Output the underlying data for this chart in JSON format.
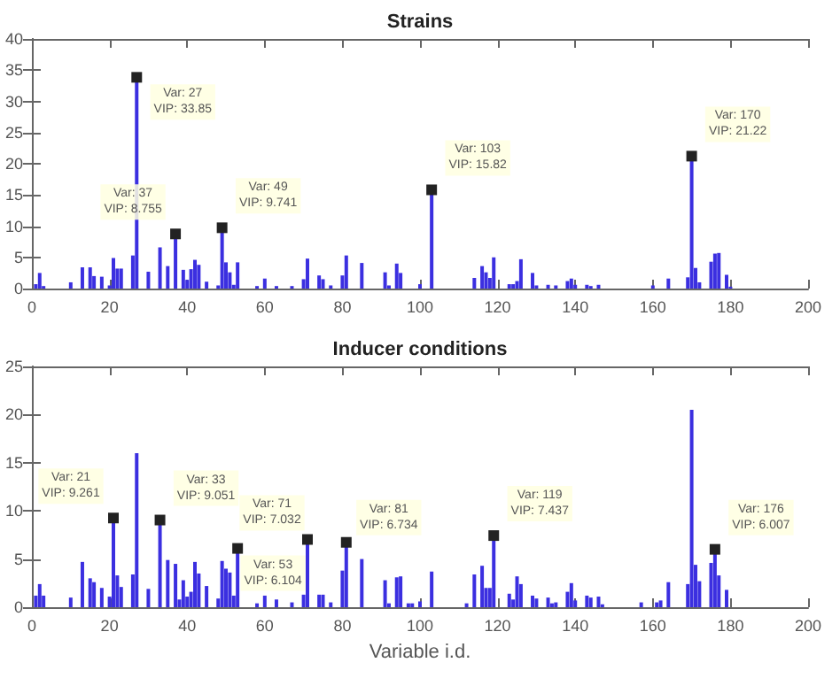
{
  "chart_data": [
    {
      "type": "bar",
      "title": "Strains",
      "color": "#3b2fe0",
      "xlim": [
        0,
        200
      ],
      "xticks": [
        0,
        20,
        40,
        60,
        80,
        100,
        120,
        140,
        160,
        180,
        200
      ],
      "ylim": [
        0,
        40
      ],
      "yticks": [
        0,
        5,
        10,
        15,
        20,
        25,
        30,
        35,
        40
      ],
      "grid": false,
      "x": [
        1,
        2,
        3,
        10,
        13,
        15,
        16,
        18,
        20,
        21,
        22,
        23,
        26,
        27,
        30,
        33,
        35,
        37,
        39,
        40,
        41,
        42,
        43,
        45,
        48,
        49,
        50,
        51,
        52,
        53,
        58,
        60,
        63,
        67,
        70,
        71,
        74,
        75,
        77,
        80,
        81,
        85,
        91,
        92,
        94,
        95,
        100,
        103,
        114,
        116,
        117,
        118,
        119,
        123,
        124,
        125,
        126,
        129,
        130,
        133,
        135,
        138,
        139,
        140,
        143,
        144,
        146,
        160,
        164,
        169,
        170,
        171,
        172,
        175,
        176,
        177,
        179,
        180
      ],
      "values": [
        0.7,
        2.5,
        0.4,
        1.0,
        3.4,
        3.4,
        2.0,
        1.9,
        0.5,
        4.9,
        3.2,
        3.2,
        5.3,
        33.85,
        2.7,
        6.6,
        3.6,
        8.755,
        3.0,
        1.4,
        3.1,
        4.6,
        3.8,
        1.1,
        0.5,
        9.741,
        4.2,
        2.6,
        0.6,
        4.2,
        0.4,
        1.6,
        0.4,
        0.4,
        1.5,
        4.8,
        2.1,
        1.5,
        0.5,
        2.1,
        5.3,
        4.1,
        2.6,
        0.5,
        4.0,
        2.5,
        0.7,
        15.82,
        1.7,
        3.6,
        2.6,
        1.7,
        5.0,
        0.7,
        0.7,
        1.2,
        4.7,
        2.5,
        0.5,
        0.6,
        0.5,
        1.2,
        1.6,
        0.6,
        0.6,
        0.4,
        0.6,
        0.5,
        1.6,
        1.8,
        21.22,
        3.3,
        1.0,
        4.3,
        5.6,
        5.7,
        2.2,
        0.3
      ],
      "annotations": [
        {
          "text": "Var: 27\nVIP: 33.85",
          "x": 27,
          "y": 33.85
        },
        {
          "text": "Var: 37\nVIP: 8.755",
          "x": 37,
          "y": 8.755
        },
        {
          "text": "Var: 49\nVIP: 9.741",
          "x": 49,
          "y": 9.741
        },
        {
          "text": "Var: 103\nVIP: 15.82",
          "x": 103,
          "y": 15.82
        },
        {
          "text": "Var: 170\nVIP: 21.22",
          "x": 170,
          "y": 21.22
        }
      ]
    },
    {
      "type": "bar",
      "title": "Inducer conditions",
      "xlabel": "Variable i.d.",
      "color": "#3b2fe0",
      "xlim": [
        0,
        200
      ],
      "xticks": [
        0,
        20,
        40,
        60,
        80,
        100,
        120,
        140,
        160,
        180,
        200
      ],
      "ylim": [
        0,
        25
      ],
      "yticks": [
        0,
        5,
        10,
        15,
        20,
        25
      ],
      "grid": false,
      "x": [
        1,
        2,
        3,
        10,
        13,
        15,
        16,
        18,
        20,
        21,
        22,
        23,
        26,
        27,
        30,
        33,
        35,
        37,
        38,
        39,
        40,
        41,
        42,
        43,
        45,
        48,
        49,
        50,
        51,
        52,
        53,
        58,
        60,
        63,
        67,
        70,
        71,
        74,
        75,
        77,
        80,
        81,
        85,
        91,
        92,
        94,
        95,
        97,
        98,
        100,
        103,
        112,
        114,
        116,
        117,
        118,
        119,
        123,
        124,
        125,
        126,
        129,
        130,
        133,
        134,
        135,
        138,
        139,
        140,
        143,
        144,
        146,
        147,
        157,
        161,
        162,
        164,
        169,
        170,
        171,
        172,
        175,
        176,
        177,
        179
      ],
      "values": [
        1.2,
        2.4,
        1.2,
        1.0,
        4.7,
        3.0,
        2.6,
        2.0,
        1.1,
        9.261,
        3.3,
        2.1,
        3.4,
        16.0,
        1.9,
        9.051,
        4.9,
        4.5,
        0.8,
        2.8,
        1.1,
        1.6,
        4.7,
        3.5,
        2.2,
        0.9,
        4.8,
        4.0,
        3.6,
        1.2,
        6.104,
        0.4,
        1.2,
        0.8,
        0.5,
        1.3,
        7.032,
        1.3,
        1.3,
        0.5,
        3.8,
        6.734,
        5.0,
        2.8,
        0.4,
        3.1,
        3.2,
        0.4,
        0.4,
        0.6,
        3.7,
        0.4,
        3.4,
        4.3,
        2.0,
        2.0,
        7.437,
        1.4,
        0.8,
        3.2,
        2.4,
        1.2,
        0.9,
        1.0,
        0.4,
        0.5,
        1.6,
        2.5,
        0.7,
        1.2,
        1.0,
        1.1,
        0.3,
        0.5,
        0.5,
        0.7,
        2.6,
        2.4,
        20.5,
        4.4,
        2.7,
        4.6,
        6.007,
        3.3,
        1.8
      ],
      "annotations": [
        {
          "text": "Var: 21\nVIP: 9.261",
          "x": 21,
          "y": 9.261
        },
        {
          "text": "Var: 33\nVIP: 9.051",
          "x": 33,
          "y": 9.051
        },
        {
          "text": "Var: 53\nVIP: 6.104",
          "x": 53,
          "y": 6.104
        },
        {
          "text": "Var: 71\nVIP: 7.032",
          "x": 71,
          "y": 7.032
        },
        {
          "text": "Var: 81\nVIP: 6.734",
          "x": 81,
          "y": 6.734
        },
        {
          "text": "Var: 119\nVIP: 7.437",
          "x": 119,
          "y": 7.437
        },
        {
          "text": "Var: 176\nVIP: 6.007",
          "x": 176,
          "y": 6.007
        }
      ]
    }
  ]
}
